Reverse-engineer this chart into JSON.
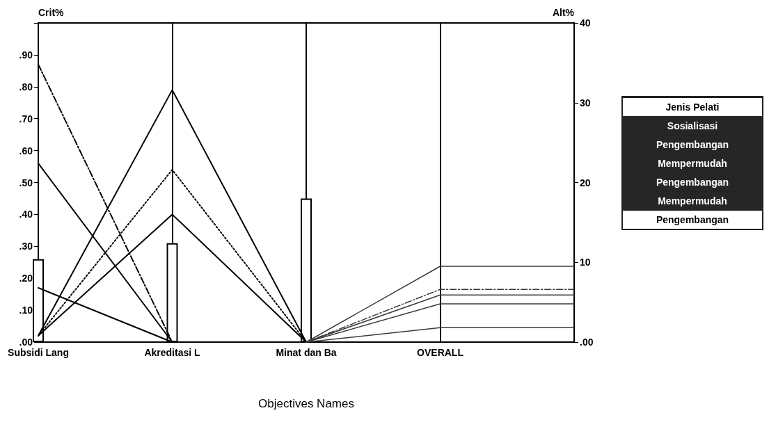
{
  "chart_data": [
    {
      "type": "line",
      "xlabel": "Objectives Names",
      "ylabel": "Crit%",
      "y2label": "Alt%",
      "categories": [
        "Subsidi Lang",
        "Akreditasi L",
        "Minat dan Ba",
        "OVERALL",
        null
      ],
      "ylim": [
        0,
        1
      ],
      "yticks": [
        {
          "value": 0,
          "label": ".00"
        },
        {
          "value": 0.1,
          "label": ".10"
        },
        {
          "value": 0.2,
          "label": ".20"
        },
        {
          "value": 0.3,
          "label": ".30"
        },
        {
          "value": 0.4,
          "label": ".40"
        },
        {
          "value": 0.5,
          "label": ".50"
        },
        {
          "value": 0.6,
          "label": ".60"
        },
        {
          "value": 0.7,
          "label": ".70"
        },
        {
          "value": 0.8,
          "label": ".80"
        },
        {
          "value": 0.9,
          "label": ".90"
        },
        {
          "value": 1,
          "label": null
        }
      ],
      "y2lim": [
        0,
        40
      ],
      "y2ticks": [
        {
          "value": 0,
          "label": ".00"
        },
        10,
        20,
        30,
        40
      ],
      "grid": "x",
      "marker": "none",
      "series": [
        {
          "type": "bar",
          "color": "#ffffff",
          "values": [
            0.26,
            0.31,
            0.45,
            null,
            null
          ]
        },
        {
          "color": "#000000",
          "line_style": "dashed",
          "values": [
            0.87,
            0,
            0,
            null,
            null
          ]
        },
        {
          "color": "#000000",
          "line_style": "solid",
          "values": [
            0.56,
            0,
            0,
            null,
            null
          ]
        },
        {
          "color": "#000000",
          "line_style": "solid",
          "values": [
            0.17,
            0,
            0,
            null,
            null
          ]
        },
        {
          "color": "#000000",
          "line_style": "solid",
          "values": [
            0.02,
            0.79,
            0,
            null,
            null
          ]
        },
        {
          "color": "#000000",
          "line_style": "dotted",
          "values": [
            0.02,
            0.54,
            0,
            null,
            null
          ]
        },
        {
          "color": "#000000",
          "line_style": "solid",
          "values": [
            0.02,
            0.4,
            0,
            null,
            null
          ]
        },
        {
          "color": "#3a3a3a",
          "line_style": "solid",
          "axis": "y2",
          "values": [
            null,
            null,
            0,
            9.5,
            9.5
          ]
        },
        {
          "color": "#3a3a3a",
          "line_style": "dashed",
          "axis": "y2",
          "values": [
            null,
            null,
            0,
            6.6,
            6.6
          ]
        },
        {
          "color": "#3a3a3a",
          "line_style": "solid",
          "axis": "y2",
          "values": [
            null,
            null,
            0,
            5.9,
            5.9
          ]
        },
        {
          "color": "#3a3a3a",
          "line_style": "solid",
          "axis": "y2",
          "values": [
            null,
            null,
            0,
            4.8,
            4.8
          ]
        },
        {
          "color": "#3a3a3a",
          "line_style": "solid",
          "axis": "y2",
          "values": [
            null,
            null,
            0,
            1.8,
            1.8
          ]
        }
      ]
    },
    {
      "type": "other",
      "annotations": [
        "Jenis Pelati",
        "Sosialisasi",
        "Pengembangan",
        "Mempermudah",
        "Pengembangan",
        "Mempermudah",
        "Pengembangan"
      ]
    }
  ]
}
